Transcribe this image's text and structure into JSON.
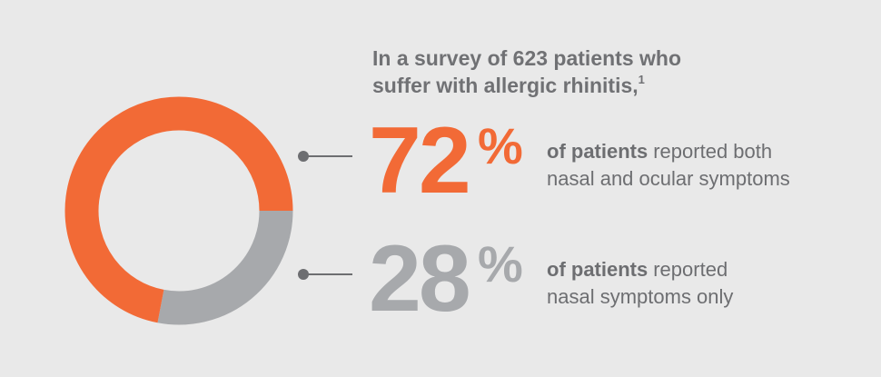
{
  "chart_data": {
    "type": "donut",
    "title_lines": [
      "In a survey of 623 patients who",
      "suffer with allergic rhinitis,"
    ],
    "title_note": "1",
    "unit": "%",
    "series": [
      {
        "color": "#f26a36",
        "values": [
          72
        ],
        "emphasis": "of patients",
        "description": [
          "reported both",
          "nasal and ocular symptoms"
        ]
      },
      {
        "color": "#a7a9ac",
        "values": [
          28
        ],
        "emphasis": "of patients",
        "description": [
          "reported",
          "nasal symptoms only"
        ]
      }
    ]
  }
}
